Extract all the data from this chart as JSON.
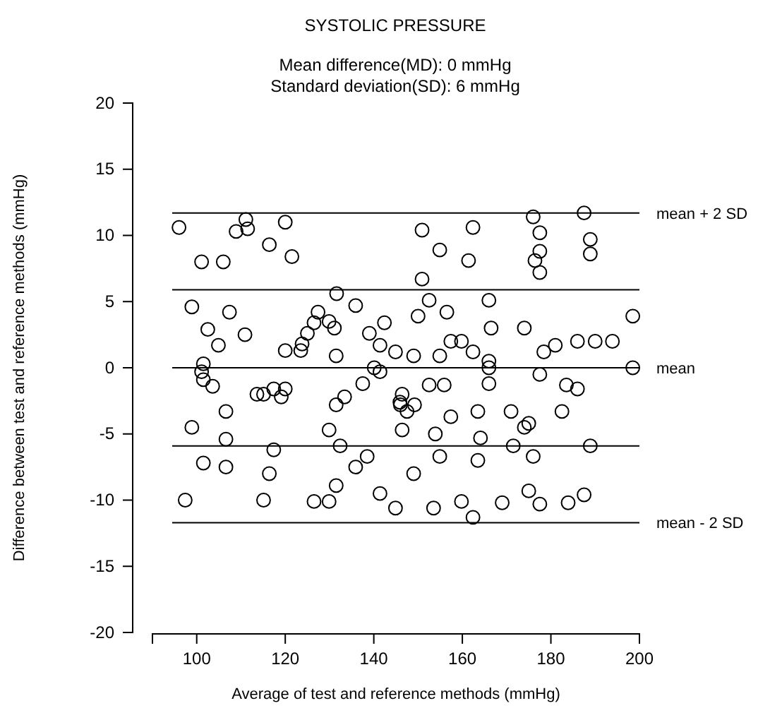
{
  "chart_data": {
    "type": "scatter",
    "title": "SYSTOLIC PRESSURE",
    "annotations": [
      "Mean difference(MD): 0 mmHg",
      "Standard deviation(SD): 6 mmHg"
    ],
    "xlabel": "Average of test and reference methods (mmHg)",
    "ylabel": "Difference between test and reference methods (mmHg)",
    "xlim": [
      90,
      200
    ],
    "xticks": [
      100,
      120,
      140,
      160,
      180,
      200
    ],
    "ylim": [
      -20,
      20
    ],
    "yticks": [
      -20,
      -15,
      -10,
      -5,
      0,
      5,
      10,
      15,
      20
    ],
    "grid": false,
    "marker": "circle",
    "ref_lines": [
      {
        "axis": "y",
        "value": 11.7,
        "label": "mean + 2 SD",
        "color": "#000000"
      },
      {
        "axis": "y",
        "value": 5.9,
        "label": null,
        "color": "#000000"
      },
      {
        "axis": "y",
        "value": 0,
        "label": "mean",
        "color": "#000000"
      },
      {
        "axis": "y",
        "value": -5.9,
        "label": null,
        "color": "#000000"
      },
      {
        "axis": "y",
        "value": -11.7,
        "label": "mean - 2 SD",
        "color": "#000000"
      }
    ],
    "series": [
      {
        "color": "#000000",
        "x": [
          96.0,
          101.1,
          106.0,
          108.9,
          111.1,
          111.5,
          116.4,
          120.0,
          121.5,
          98.9,
          107.4,
          102.5,
          110.9,
          104.9,
          120.0,
          101.5,
          101.1,
          101.5,
          103.6,
          106.6,
          98.9,
          106.6,
          113.6,
          115.1,
          117.4,
          119.1,
          120.0,
          117.4,
          101.5,
          106.6,
          116.4,
          97.4,
          115.1,
          150.9,
          154.9,
          161.4,
          150.9,
          131.6,
          135.9,
          152.5,
          156.5,
          150.0,
          127.4,
          126.5,
          129.9,
          131.1,
          125.0,
          123.8,
          123.5,
          142.4,
          139.0,
          141.4,
          144.9,
          149.0,
          154.9,
          131.5,
          157.4,
          159.8,
          140.1,
          141.4,
          137.5,
          152.5,
          155.9,
          133.4,
          131.5,
          146.4,
          145.9,
          146.0,
          147.5,
          149.2,
          157.4,
          129.9,
          146.4,
          153.9,
          132.4,
          138.5,
          135.9,
          154.9,
          149.0,
          131.5,
          126.5,
          129.9,
          141.4,
          144.9,
          153.5,
          159.8,
          162.4,
          176.0,
          177.5,
          177.5,
          176.4,
          177.5,
          187.5,
          188.9,
          188.9,
          166.0,
          166.5,
          174.0,
          198.5,
          162.4,
          166.0,
          166.0,
          166.0,
          178.4,
          181.0,
          186.0,
          190.0,
          193.9,
          198.5,
          177.5,
          183.5,
          186.0,
          163.5,
          171.0,
          182.5,
          174.0,
          175.0,
          164.1,
          171.5,
          188.9,
          163.5,
          176.0,
          162.4,
          169.0,
          175.0,
          177.5,
          183.9,
          187.5
        ],
        "values": [
          10.6,
          8.0,
          8.0,
          10.3,
          11.2,
          10.5,
          9.3,
          11.0,
          8.4,
          4.6,
          4.2,
          2.9,
          2.5,
          1.7,
          1.3,
          0.3,
          -0.3,
          -0.9,
          -1.4,
          -3.3,
          -4.5,
          -5.4,
          -2.0,
          -2.0,
          -1.6,
          -2.2,
          -1.6,
          -6.2,
          -7.2,
          -7.5,
          -8.0,
          -10.0,
          -10.0,
          10.4,
          8.9,
          8.1,
          6.7,
          5.6,
          4.7,
          5.1,
          4.2,
          3.9,
          4.2,
          3.4,
          3.5,
          3.0,
          2.6,
          1.8,
          1.3,
          3.4,
          2.6,
          1.7,
          1.2,
          0.9,
          0.9,
          0.9,
          2.0,
          2.0,
          0.0,
          -0.3,
          -1.2,
          -1.3,
          -1.3,
          -2.2,
          -2.8,
          -2.0,
          -2.6,
          -2.8,
          -3.3,
          -2.8,
          -3.7,
          -4.7,
          -4.7,
          -5.0,
          -5.9,
          -6.7,
          -7.5,
          -6.7,
          -8.0,
          -8.9,
          -10.1,
          -10.1,
          -9.5,
          -10.6,
          -10.6,
          -10.1,
          10.6,
          11.4,
          10.2,
          8.8,
          8.1,
          7.2,
          11.7,
          9.7,
          8.6,
          5.1,
          3.0,
          3.0,
          3.9,
          1.2,
          0.5,
          0.0,
          -1.2,
          1.2,
          1.7,
          2.0,
          2.0,
          2.0,
          0.0,
          -0.5,
          -1.3,
          -1.6,
          -3.3,
          -3.3,
          -3.3,
          -4.5,
          -4.2,
          -5.3,
          -5.9,
          -5.9,
          -7.0,
          -6.7,
          -11.3,
          -10.2,
          -9.3,
          -10.3,
          -10.2,
          -9.6
        ]
      }
    ]
  }
}
